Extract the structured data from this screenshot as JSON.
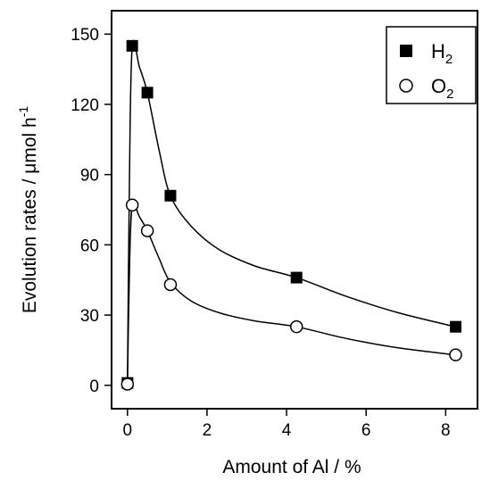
{
  "chart_data": {
    "type": "scatter",
    "xlabel": "Amount of Al / %",
    "ylabel_main": "Evolution rates / μmol h",
    "ylabel_sup": "-1",
    "xlim": [
      -0.4,
      8.8
    ],
    "ylim": [
      -10,
      160
    ],
    "xticks": [
      0,
      2,
      4,
      6,
      8
    ],
    "yticks": [
      0,
      30,
      60,
      90,
      120,
      150
    ],
    "grid": false,
    "legend_position": "top-right",
    "series": [
      {
        "name": "H2",
        "legend_base": "H",
        "legend_sub": "2",
        "marker": "filled-square",
        "color": "#000000",
        "points": [
          [
            0,
            1
          ],
          [
            0.12,
            145
          ],
          [
            0.5,
            125
          ],
          [
            1.08,
            81
          ],
          [
            4.25,
            46
          ],
          [
            8.25,
            25
          ]
        ],
        "fit": [
          [
            0,
            1
          ],
          [
            0.05,
            90
          ],
          [
            0.12,
            145
          ],
          [
            0.3,
            136
          ],
          [
            0.5,
            125
          ],
          [
            0.8,
            100
          ],
          [
            1.08,
            81
          ],
          [
            1.6,
            68
          ],
          [
            2.3,
            58
          ],
          [
            3.2,
            51
          ],
          [
            4.25,
            46
          ],
          [
            5.5,
            38
          ],
          [
            6.8,
            31
          ],
          [
            8.25,
            25
          ]
        ]
      },
      {
        "name": "O2",
        "legend_base": "O",
        "legend_sub": "2",
        "marker": "open-circle",
        "color": "#000000",
        "points": [
          [
            0,
            0.5
          ],
          [
            0.12,
            77
          ],
          [
            0.5,
            66
          ],
          [
            1.08,
            43
          ],
          [
            4.25,
            25
          ],
          [
            8.25,
            13
          ]
        ],
        "fit": [
          [
            0,
            0.5
          ],
          [
            0.05,
            50
          ],
          [
            0.12,
            77
          ],
          [
            0.3,
            72
          ],
          [
            0.5,
            66
          ],
          [
            0.8,
            54
          ],
          [
            1.08,
            44
          ],
          [
            1.6,
            36
          ],
          [
            2.3,
            31
          ],
          [
            3.2,
            27.5
          ],
          [
            4.25,
            25
          ],
          [
            5.5,
            20
          ],
          [
            6.8,
            16
          ],
          [
            8.25,
            13
          ]
        ]
      }
    ]
  }
}
